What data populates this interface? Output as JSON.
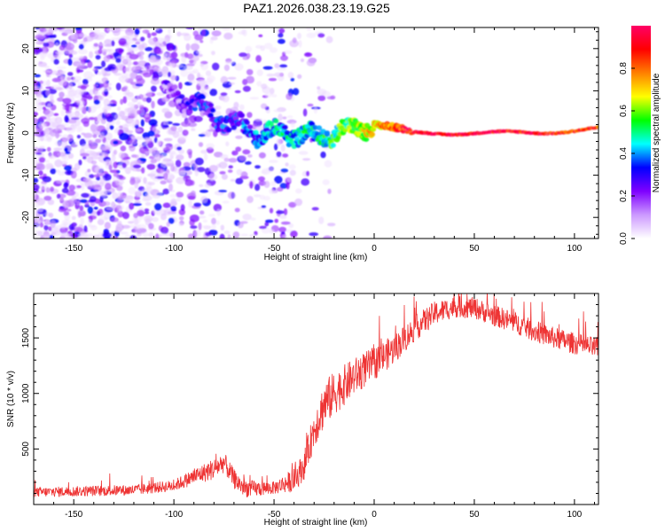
{
  "title": "PAZ1.2026.038.23.19.G25",
  "chart_data": [
    {
      "type": "heatmap",
      "title": "PAZ1.2026.038.23.19.G25",
      "xlabel": "Height of straight line (km)",
      "ylabel": "Frequency (Hz)",
      "xlim": [
        -170,
        112
      ],
      "ylim": [
        -25,
        25
      ],
      "xticks": [
        -150,
        -100,
        -50,
        0,
        50,
        100
      ],
      "yticks": [
        -20,
        -10,
        0,
        10,
        20
      ],
      "colorbar": {
        "label": "Normalized spectral amplitude",
        "range": [
          0.0,
          1.0
        ],
        "ticks": [
          0.0,
          0.2,
          0.4,
          0.6,
          0.8
        ],
        "tick_labels": [
          "0.0",
          "0.2",
          "0.4",
          "0.6",
          "0.8"
        ],
        "colors": [
          "#ffffff",
          "#cc99ff",
          "#7f00ff",
          "#0000ff",
          "#00ffff",
          "#00ff00",
          "#ffff00",
          "#ff8000",
          "#ff0000",
          "#ff0066"
        ]
      },
      "signal_track": {
        "description_points_x": [
          -100,
          -90,
          -80,
          -70,
          -60,
          -50,
          -40,
          -30,
          -20,
          -10,
          0,
          10,
          20,
          50,
          80,
          110
        ],
        "frequency": [
          9,
          7,
          4,
          2,
          0,
          0,
          0,
          -1,
          0,
          1,
          2,
          1,
          0,
          0,
          0,
          1
        ],
        "amplitude": [
          0.15,
          0.25,
          0.3,
          0.3,
          0.35,
          0.4,
          0.45,
          0.45,
          0.5,
          0.6,
          0.7,
          0.8,
          0.95,
          0.95,
          0.9,
          0.85
        ]
      }
    },
    {
      "type": "line",
      "xlabel": "Height of straight line (km)",
      "ylabel": "SNR (10 * v/v)",
      "xlim": [
        -170,
        112
      ],
      "ylim": [
        0,
        1900
      ],
      "xticks": [
        -150,
        -100,
        -50,
        0,
        50,
        100
      ],
      "yticks": [
        500,
        1000,
        1500
      ],
      "line_color": "#ee3333",
      "envelope": {
        "x": [
          -170,
          -120,
          -100,
          -90,
          -80,
          -75,
          -70,
          -65,
          -60,
          -50,
          -40,
          -35,
          -30,
          -25,
          -20,
          -10,
          0,
          10,
          20,
          30,
          40,
          50,
          60,
          70,
          80,
          90,
          100,
          110
        ],
        "y": [
          110,
          130,
          170,
          250,
          320,
          380,
          230,
          150,
          140,
          150,
          220,
          350,
          680,
          900,
          1000,
          1150,
          1270,
          1400,
          1580,
          1720,
          1780,
          1770,
          1700,
          1640,
          1560,
          1500,
          1450,
          1410
        ]
      },
      "noise_amplitude": {
        "x": [
          -170,
          -100,
          -80,
          -70,
          -50,
          -35,
          -25,
          -10,
          20,
          40,
          80,
          110
        ],
        "y": [
          70,
          80,
          150,
          140,
          90,
          200,
          330,
          260,
          180,
          150,
          150,
          150
        ]
      }
    }
  ]
}
